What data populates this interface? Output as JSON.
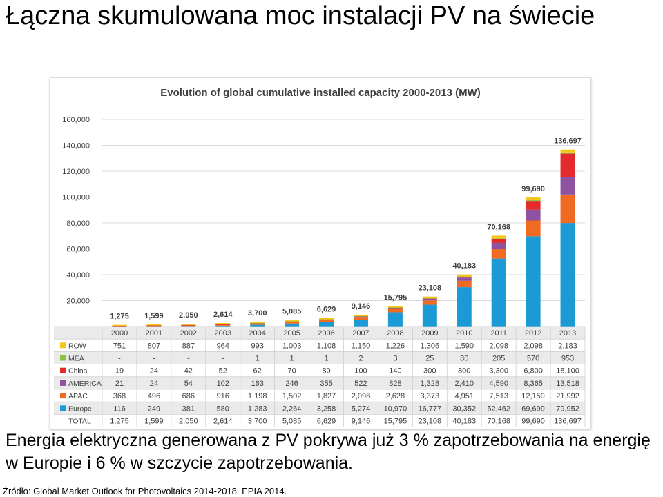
{
  "slide": {
    "title": "Łączna skumulowana moc instalacji PV na świecie",
    "body": "Energia elektryczna generowana z PV pokrywa już 3 % zapotrzebowania na energię w Europie i 6 % w szczycie zapotrzebowania.",
    "source": "Źródło: Global Market Outlook for Photovoltaics 2014-2018. EPIA 2014."
  },
  "chart_data": {
    "type": "bar",
    "stacked": true,
    "title": "Evolution of global cumulative installed capacity 2000-2013 (MW)",
    "categories": [
      "2000",
      "2001",
      "2002",
      "2003",
      "2004",
      "2005",
      "2006",
      "2007",
      "2008",
      "2009",
      "2010",
      "2011",
      "2012",
      "2013"
    ],
    "ylim": [
      0,
      160000
    ],
    "yticks": [
      0,
      20000,
      40000,
      60000,
      80000,
      100000,
      120000,
      140000,
      160000
    ],
    "ytick_labels": [
      "-",
      "20,000",
      "40,000",
      "60,000",
      "80,000",
      "100,000",
      "120,000",
      "140,000",
      "160,000"
    ],
    "grid": true,
    "series": [
      {
        "name": "Europe",
        "color": "#1b9ad6",
        "values": [
          116,
          249,
          381,
          580,
          1283,
          2264,
          3258,
          5274,
          10970,
          16777,
          30352,
          52462,
          69699,
          79952
        ],
        "labels": [
          "116",
          "249",
          "381",
          "580",
          "1,283",
          "2,264",
          "3,258",
          "5,274",
          "10,970",
          "16,777",
          "30,352",
          "52,462",
          "69,699",
          "79,952"
        ]
      },
      {
        "name": "APAC",
        "color": "#f06a21",
        "values": [
          368,
          496,
          686,
          916,
          1198,
          1502,
          1827,
          2098,
          2628,
          3373,
          4951,
          7513,
          12159,
          21992
        ],
        "labels": [
          "368",
          "496",
          "686",
          "916",
          "1,198",
          "1,502",
          "1,827",
          "2,098",
          "2,628",
          "3,373",
          "4,951",
          "7,513",
          "12,159",
          "21,992"
        ]
      },
      {
        "name": "AMERICA",
        "color": "#8e52a1",
        "values": [
          21,
          24,
          54,
          102,
          163,
          246,
          355,
          522,
          828,
          1328,
          2410,
          4590,
          8365,
          13518
        ],
        "labels": [
          "21",
          "24",
          "54",
          "102",
          "163",
          "246",
          "355",
          "522",
          "828",
          "1,328",
          "2,410",
          "4,590",
          "8,365",
          "13,518"
        ]
      },
      {
        "name": "China",
        "color": "#e32b2b",
        "values": [
          19,
          24,
          42,
          52,
          62,
          70,
          80,
          100,
          140,
          300,
          800,
          3300,
          6800,
          18100
        ],
        "labels": [
          "19",
          "24",
          "42",
          "52",
          "62",
          "70",
          "80",
          "100",
          "140",
          "300",
          "800",
          "3,300",
          "6,800",
          "18,100"
        ]
      },
      {
        "name": "MEA",
        "color": "#8fc241",
        "values": [
          0,
          0,
          0,
          0,
          1,
          1,
          1,
          2,
          3,
          25,
          80,
          205,
          570,
          953
        ],
        "labels": [
          "-",
          "-",
          "-",
          "-",
          "1",
          "1",
          "1",
          "2",
          "3",
          "25",
          "80",
          "205",
          "570",
          "953"
        ]
      },
      {
        "name": "ROW",
        "color": "#f5c518",
        "values": [
          751,
          807,
          887,
          964,
          993,
          1003,
          1108,
          1150,
          1226,
          1306,
          1590,
          2098,
          2098,
          2183
        ],
        "labels": [
          "751",
          "807",
          "887",
          "964",
          "993",
          "1,003",
          "1,108",
          "1,150",
          "1,226",
          "1,306",
          "1,590",
          "2,098",
          "2,098",
          "2,183"
        ]
      }
    ],
    "table_row_order": [
      "ROW",
      "MEA",
      "China",
      "AMERICA",
      "APAC",
      "Europe"
    ],
    "total": {
      "name": "TOTAL",
      "values": [
        1275,
        1599,
        2050,
        2614,
        3700,
        5085,
        6629,
        9146,
        15795,
        23108,
        40183,
        70168,
        99690,
        136697
      ],
      "labels": [
        "1,275",
        "1,599",
        "2,050",
        "2,614",
        "3,700",
        "5,085",
        "6,629",
        "9,146",
        "15,795",
        "23,108",
        "40,183",
        "70,168",
        "99,690",
        "136,697"
      ]
    }
  }
}
